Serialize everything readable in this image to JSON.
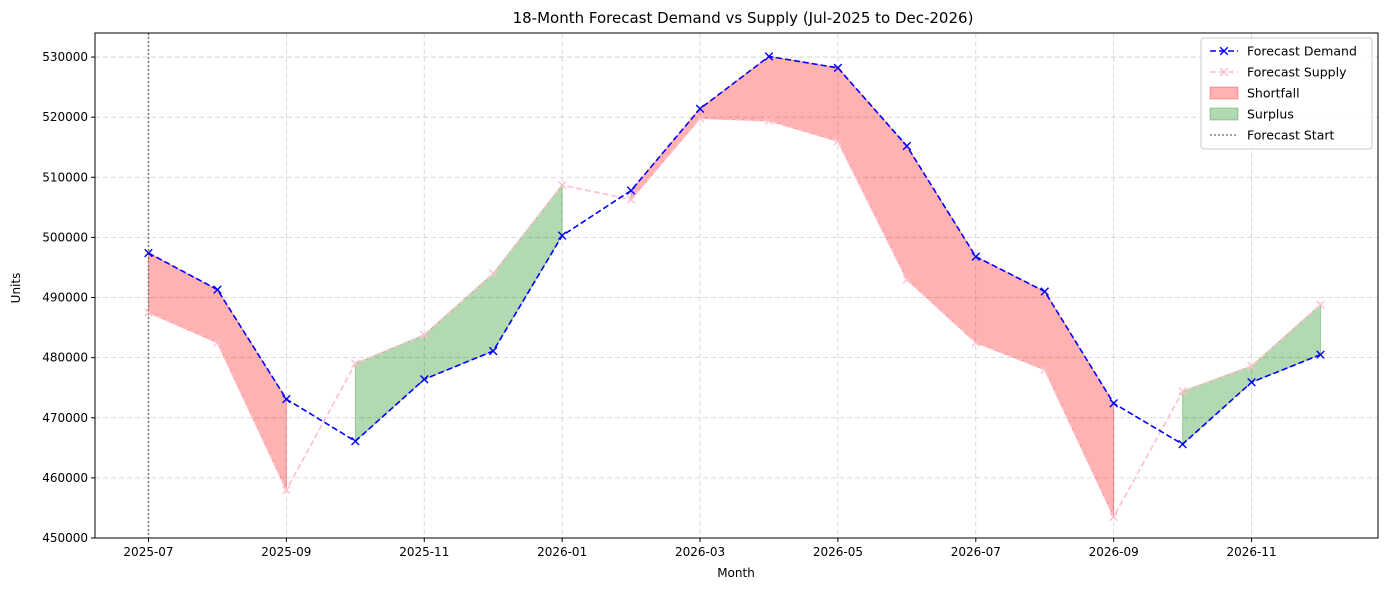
{
  "chart_data": {
    "type": "line",
    "title": "18-Month Forecast Demand vs Supply (Jul-2025 to Dec-2026)",
    "xlabel": "Month",
    "ylabel": "Units",
    "ylim": [
      450000,
      534000
    ],
    "yticks": [
      450000,
      460000,
      470000,
      480000,
      490000,
      500000,
      510000,
      520000,
      530000
    ],
    "xticks": [
      "2025-07",
      "2025-09",
      "2025-11",
      "2026-01",
      "2026-03",
      "2026-05",
      "2026-07",
      "2026-09",
      "2026-11"
    ],
    "months": [
      "2025-07",
      "2025-08",
      "2025-09",
      "2025-10",
      "2025-11",
      "2025-12",
      "2026-01",
      "2026-02",
      "2026-03",
      "2026-04",
      "2026-05",
      "2026-06",
      "2026-07",
      "2026-08",
      "2026-09",
      "2026-10",
      "2026-11",
      "2026-12"
    ],
    "series": [
      {
        "name": "Forecast Demand",
        "color": "#0000ff",
        "values": [
          497400,
          491300,
          473100,
          466100,
          476400,
          481100,
          500300,
          507800,
          521400,
          530100,
          528200,
          515200,
          496800,
          491000,
          472400,
          465600,
          475900,
          480500
        ]
      },
      {
        "name": "Forecast Supply",
        "color": "#ffc0cb",
        "values": [
          487500,
          482500,
          458000,
          479000,
          483800,
          494000,
          508700,
          506300,
          519800,
          519400,
          516000,
          493000,
          482500,
          478000,
          453500,
          474400,
          478600,
          488800
        ]
      }
    ],
    "fills": [
      {
        "name": "Shortfall",
        "color": "#ff0000",
        "alpha": 0.3
      },
      {
        "name": "Surplus",
        "color": "#008000",
        "alpha": 0.3
      }
    ],
    "vline": {
      "name": "Forecast Start",
      "x": "2025-07",
      "color": "#808080"
    },
    "legend": {
      "position": "top-right",
      "entries": [
        "Forecast Demand",
        "Forecast Supply",
        "Shortfall",
        "Surplus",
        "Forecast Start"
      ]
    },
    "grid": true
  }
}
